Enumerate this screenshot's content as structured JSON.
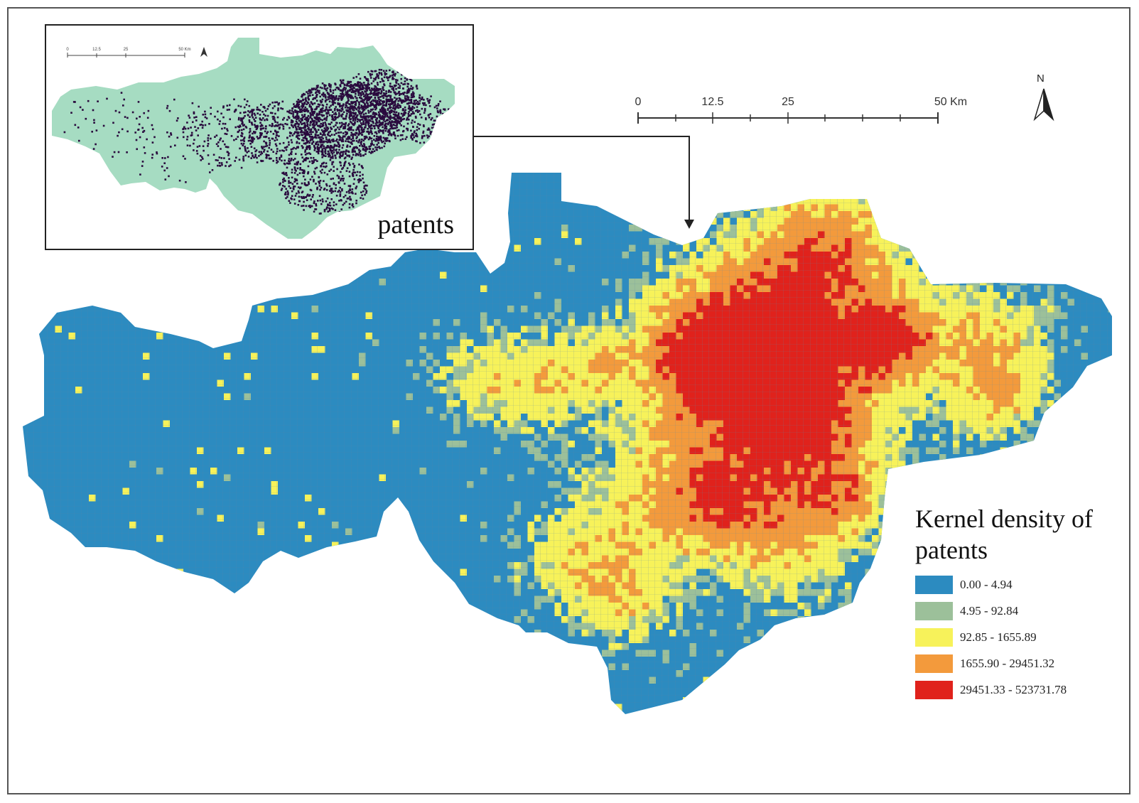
{
  "map": {
    "inset_label": "patents",
    "inset_scale_labels": [
      "0",
      "12.5",
      "25",
      "50 Km"
    ],
    "scale_bar": {
      "labels": [
        "0",
        "12.5",
        "25",
        "50 Km"
      ],
      "values_km": [
        0,
        12.5,
        25,
        50
      ]
    },
    "north_label": "N",
    "legend": {
      "title": "Kernel density of patents",
      "classes": [
        {
          "label": "0.00 - 4.94",
          "color": "#2c8bc0"
        },
        {
          "label": "4.95 - 92.84",
          "color": "#9cc09a"
        },
        {
          "label": "92.85 - 1655.89",
          "color": "#f7f25a"
        },
        {
          "label": "1655.90 - 29451.32",
          "color": "#f39a3c"
        },
        {
          "label": "29451.33 - 523731.78",
          "color": "#e0221c"
        }
      ]
    },
    "colors": {
      "inset_fill": "#a6dcc2",
      "inset_points": "#2a0a3e",
      "grid_line": "#8a8a8a"
    },
    "icons": [
      "north-arrow-icon",
      "leader-arrow-icon"
    ]
  }
}
